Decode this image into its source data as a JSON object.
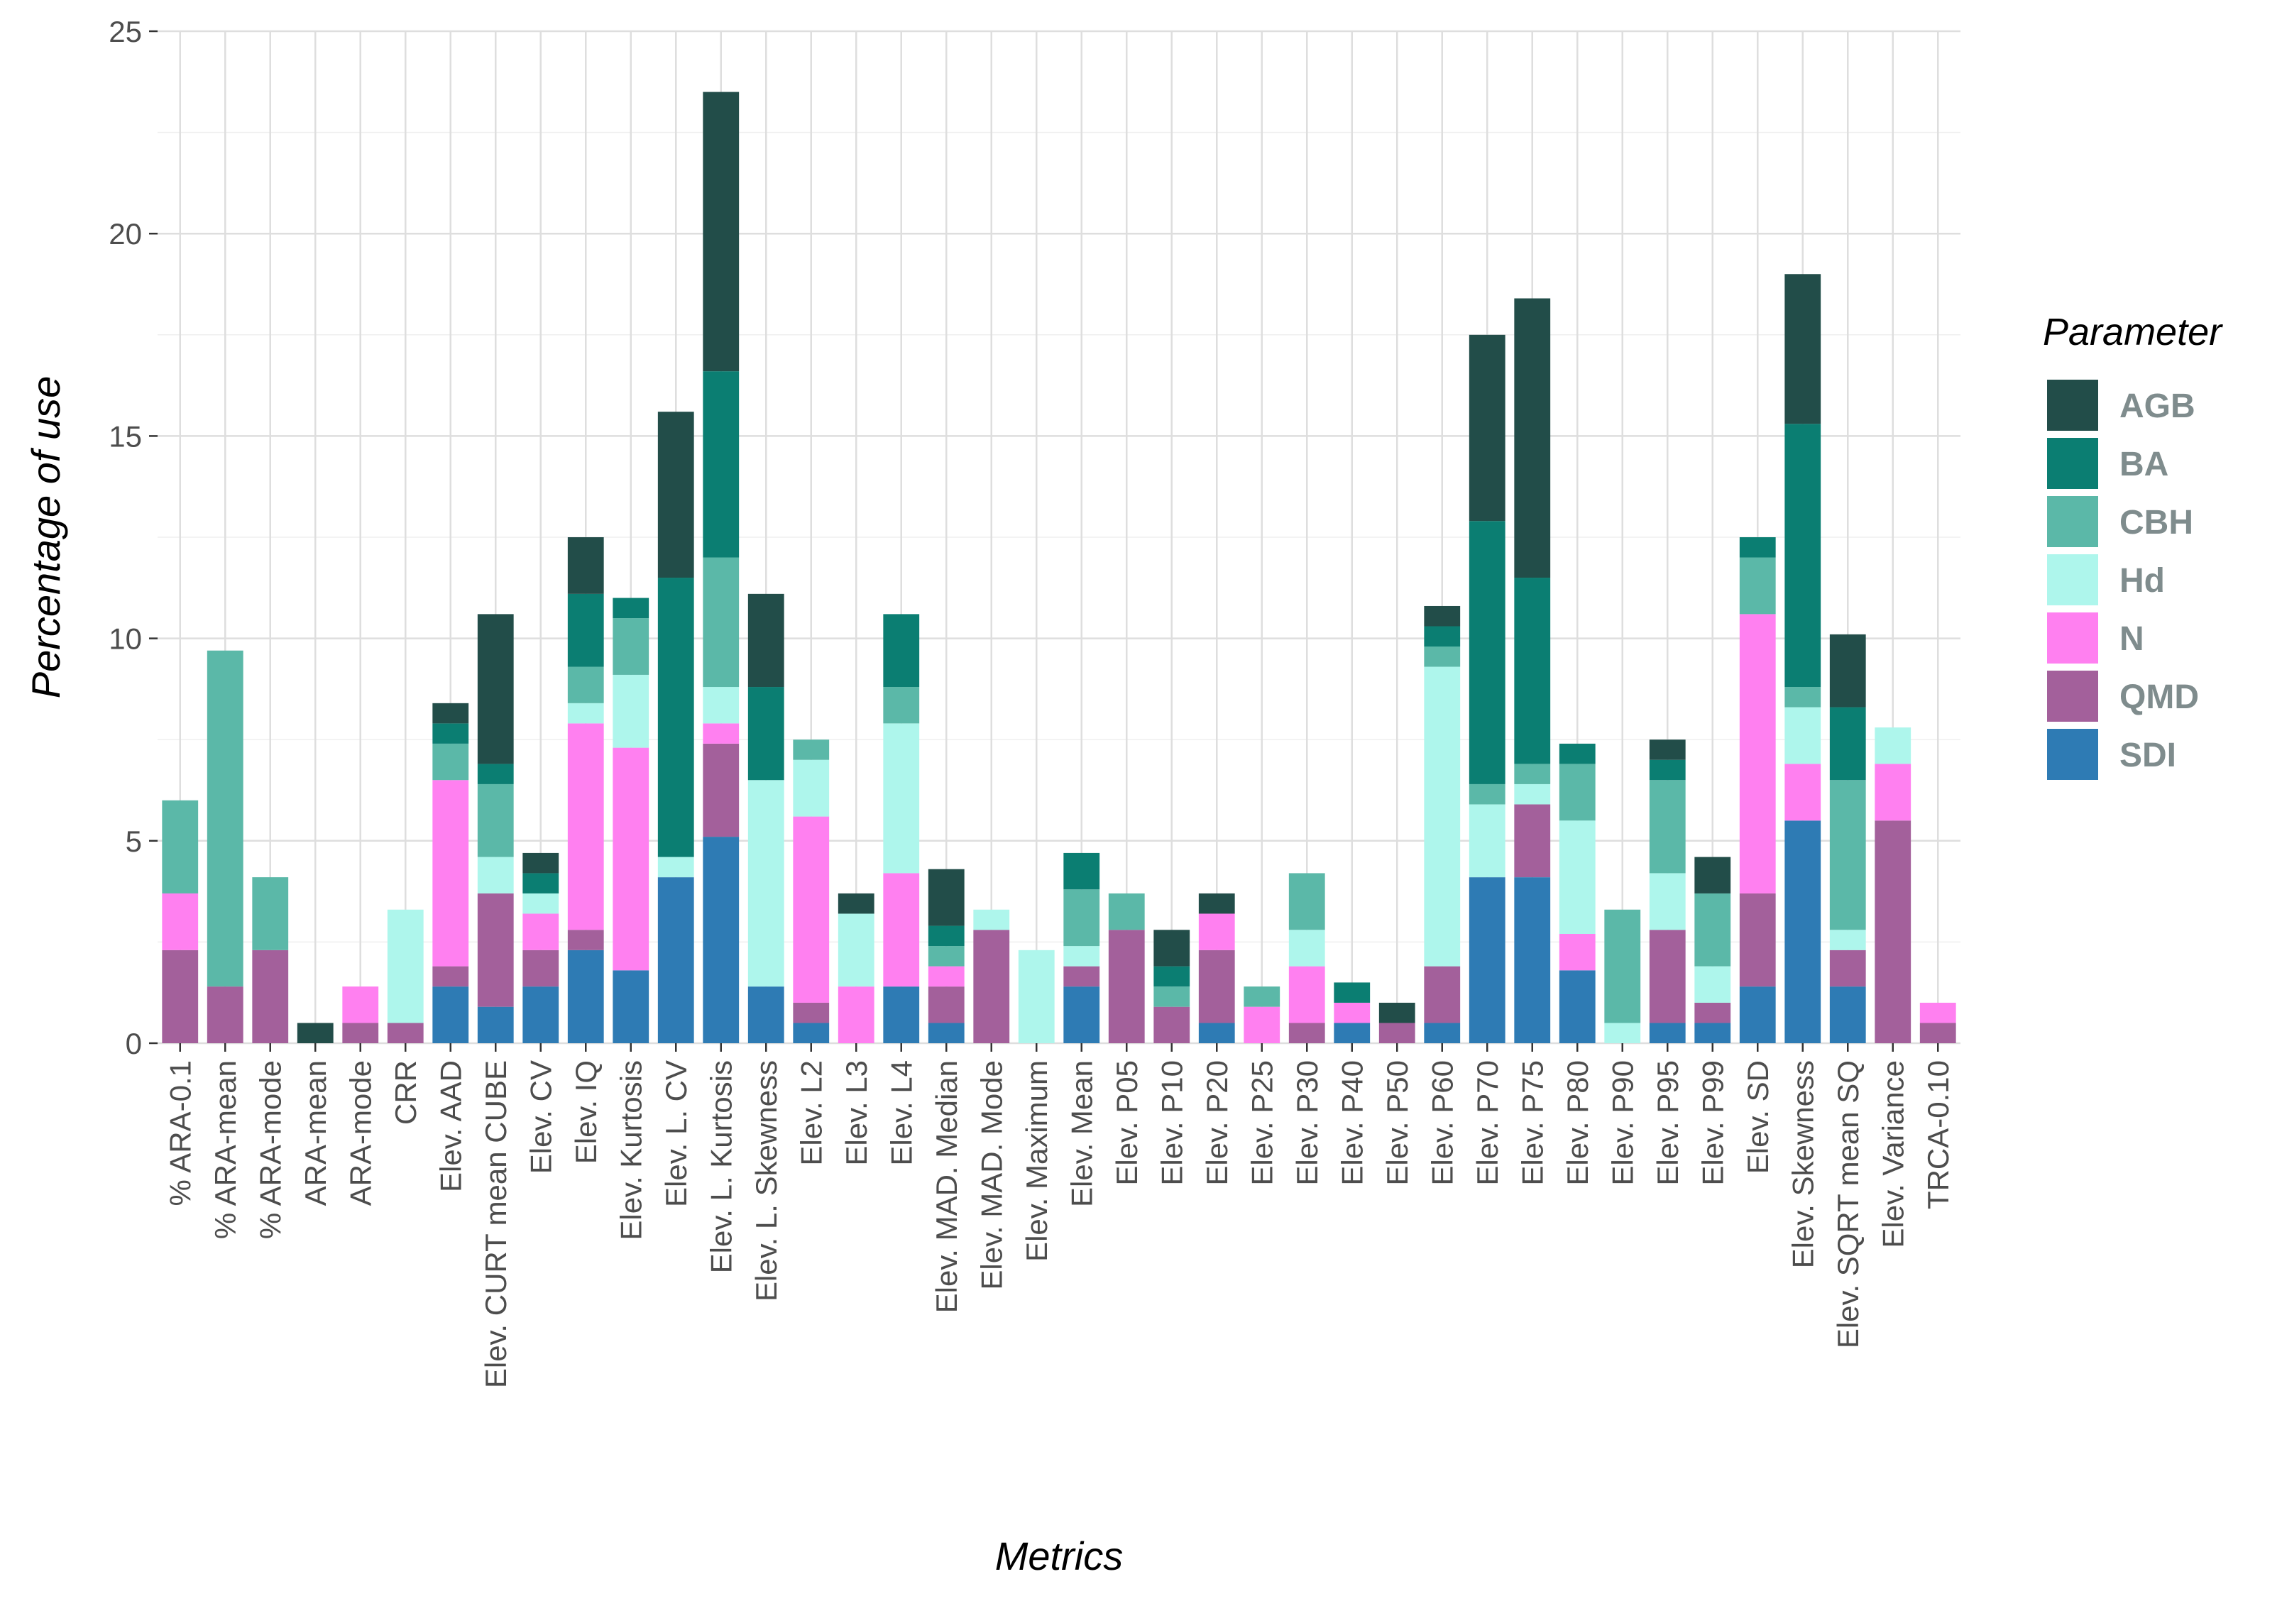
{
  "chart_data": {
    "type": "bar",
    "stacked": true,
    "title": "",
    "xlabel": "Metrics",
    "ylabel": "Percentage of use",
    "ylim": [
      0,
      25
    ],
    "yticks": [
      0,
      5,
      10,
      15,
      20,
      25
    ],
    "ytick_labels": [
      "0",
      "5",
      "10",
      "15",
      "20",
      "25"
    ],
    "grid": true,
    "legend_position": "right",
    "legend_title": "Parameter",
    "categories": [
      "% ARA-0.1",
      "% ARA-mean",
      "% ARA-mode",
      "ARA-mean",
      "ARA-mode",
      "CRR",
      "Elev. AAD",
      "Elev. CURT mean CUBE",
      "Elev. CV",
      "Elev. IQ",
      "Elev. Kurtosis",
      "Elev. L. CV",
      "Elev. L. Kurtosis",
      "Elev. L. Skewness",
      "Elev. L2",
      "Elev. L3",
      "Elev. L4",
      "Elev. MAD. Median",
      "Elev. MAD. Mode",
      "Elev. Maximum",
      "Elev. Mean",
      "Elev. P05",
      "Elev. P10",
      "Elev. P20",
      "Elev. P25",
      "Elev. P30",
      "Elev. P40",
      "Elev. P50",
      "Elev. P60",
      "Elev. P70",
      "Elev. P75",
      "Elev. P80",
      "Elev. P90",
      "Elev. P95",
      "Elev. P99",
      "Elev. SD",
      "Elev. Skewness",
      "Elev. SQRT mean SQ",
      "Elev. Variance",
      "TRCA-0.10"
    ],
    "series": [
      {
        "name": "SDI",
        "color": "#2e7bb4",
        "values": [
          0,
          0,
          0,
          0,
          0,
          0,
          1.4,
          0.9,
          1.4,
          2.3,
          1.8,
          4.1,
          5.1,
          1.4,
          0.5,
          0,
          1.4,
          0.5,
          0,
          0,
          1.4,
          0,
          0,
          0.5,
          0,
          0,
          0.5,
          0,
          0.5,
          4.1,
          4.1,
          1.8,
          0,
          0.5,
          0.5,
          1.4,
          5.5,
          1.4,
          0,
          0
        ]
      },
      {
        "name": "QMD",
        "color": "#a3609b",
        "values": [
          2.3,
          1.4,
          2.3,
          0,
          0.5,
          0.5,
          0.5,
          2.8,
          0.9,
          0.5,
          0,
          0,
          2.3,
          0,
          0.5,
          0,
          0,
          0.9,
          2.8,
          0,
          0.5,
          2.8,
          0.9,
          1.8,
          0,
          0.5,
          0,
          0.5,
          1.4,
          0,
          1.8,
          0,
          0,
          2.3,
          0.5,
          2.3,
          0,
          0.9,
          5.5,
          0.5
        ]
      },
      {
        "name": "N",
        "color": "#ff80f0",
        "values": [
          1.4,
          0,
          0,
          0,
          0.9,
          0,
          4.6,
          0,
          0.9,
          5.1,
          5.5,
          0,
          0.5,
          0,
          4.6,
          1.4,
          2.8,
          0.5,
          0,
          0,
          0,
          0,
          0,
          0.9,
          0.9,
          1.4,
          0.5,
          0,
          0,
          0,
          0,
          0.9,
          0,
          0,
          0,
          6.9,
          1.4,
          0,
          1.4,
          0.5
        ]
      },
      {
        "name": "Hd",
        "color": "#aef6ec",
        "values": [
          0,
          0,
          0,
          0,
          0,
          2.8,
          0,
          0.9,
          0.5,
          0.5,
          1.8,
          0.5,
          0.9,
          5.1,
          1.4,
          1.8,
          3.7,
          0,
          0.5,
          2.3,
          0.5,
          0,
          0,
          0,
          0,
          0.9,
          0,
          0,
          7.4,
          1.8,
          0.5,
          2.8,
          0.5,
          1.4,
          0.9,
          0,
          1.4,
          0.5,
          0.9,
          0
        ]
      },
      {
        "name": "CBH",
        "color": "#5bb8a8",
        "values": [
          2.3,
          8.3,
          1.8,
          0,
          0,
          0,
          0.9,
          1.8,
          0,
          0.9,
          1.4,
          0,
          3.2,
          0,
          0.5,
          0,
          0.9,
          0.5,
          0,
          0,
          1.4,
          0.9,
          0.5,
          0,
          0.5,
          1.4,
          0,
          0,
          0.5,
          0.5,
          0.5,
          1.4,
          2.8,
          2.3,
          1.8,
          1.4,
          0.5,
          3.7,
          0,
          0
        ]
      },
      {
        "name": "BA",
        "color": "#0b7e72",
        "values": [
          0,
          0,
          0,
          0,
          0,
          0,
          0.5,
          0.5,
          0.5,
          1.8,
          0.5,
          6.9,
          4.6,
          2.3,
          0,
          0,
          1.8,
          0.5,
          0,
          0,
          0.9,
          0,
          0.5,
          0,
          0,
          0,
          0.5,
          0,
          0.5,
          6.5,
          4.6,
          0.5,
          0,
          0.5,
          0,
          0.5,
          6.5,
          1.8,
          0,
          0
        ]
      },
      {
        "name": "AGB",
        "color": "#224d49",
        "values": [
          0,
          0,
          0,
          0.5,
          0,
          0,
          0.5,
          3.7,
          0.5,
          1.4,
          0,
          4.1,
          6.9,
          2.3,
          0,
          0.5,
          0,
          1.4,
          0,
          0,
          0,
          0,
          0.9,
          0.5,
          0,
          0,
          0,
          0.5,
          0.5,
          4.6,
          6.9,
          0,
          0,
          0.5,
          0.9,
          0,
          3.7,
          1.8,
          0,
          0
        ]
      }
    ]
  }
}
